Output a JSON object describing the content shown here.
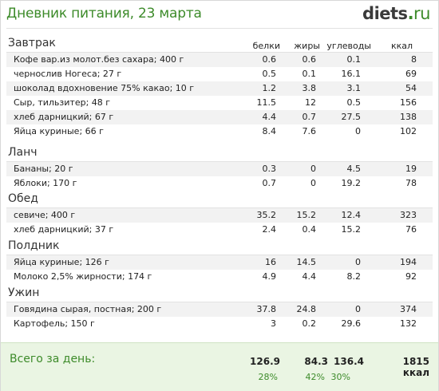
{
  "header": {
    "title": "Дневник питания, 23 марта",
    "logo_main": "diets",
    "logo_dot": ".",
    "logo_tld": "ru"
  },
  "columns": {
    "protein": "белки",
    "fat": "жиры",
    "carbs": "углеводы",
    "kcal": "ккал"
  },
  "meals": [
    {
      "title": "Завтрак",
      "items": [
        {
          "name": "Кофе вар.из молот.без сахара; 400 г",
          "p": "0.6",
          "f": "0.6",
          "c": "0.1",
          "k": "8"
        },
        {
          "name": "чернослив Ногеса; 27 г",
          "p": "0.5",
          "f": "0.1",
          "c": "16.1",
          "k": "69"
        },
        {
          "name": "шоколад вдохновение 75% какао; 10 г",
          "p": "1.2",
          "f": "3.8",
          "c": "3.1",
          "k": "54"
        },
        {
          "name": "Сыр, тильзитер; 48 г",
          "p": "11.5",
          "f": "12",
          "c": "0.5",
          "k": "156"
        },
        {
          "name": "хлеб дарницкий; 67 г",
          "p": "4.4",
          "f": "0.7",
          "c": "27.5",
          "k": "138"
        },
        {
          "name": "Яйца куриные; 66 г",
          "p": "8.4",
          "f": "7.6",
          "c": "0",
          "k": "102"
        }
      ]
    },
    {
      "title": "Ланч",
      "items": [
        {
          "name": "Бананы; 20 г",
          "p": "0.3",
          "f": "0",
          "c": "4.5",
          "k": "19"
        },
        {
          "name": "Яблоки; 170 г",
          "p": "0.7",
          "f": "0",
          "c": "19.2",
          "k": "78"
        }
      ]
    },
    {
      "title": "Обед",
      "items": [
        {
          "name": "севиче; 400 г",
          "p": "35.2",
          "f": "15.2",
          "c": "12.4",
          "k": "323"
        },
        {
          "name": "хлеб дарницкий; 37 г",
          "p": "2.4",
          "f": "0.4",
          "c": "15.2",
          "k": "76"
        }
      ]
    },
    {
      "title": "Полдник",
      "items": [
        {
          "name": "Яйца куриные; 126 г",
          "p": "16",
          "f": "14.5",
          "c": "0",
          "k": "194"
        },
        {
          "name": "Молоко 2,5% жирности; 174 г",
          "p": "4.9",
          "f": "4.4",
          "c": "8.2",
          "k": "92"
        }
      ]
    },
    {
      "title": "Ужин",
      "items": [
        {
          "name": "Говядина сырая, постная; 200 г",
          "p": "37.8",
          "f": "24.8",
          "c": "0",
          "k": "374"
        },
        {
          "name": "Картофель; 150 г",
          "p": "3",
          "f": "0.2",
          "c": "29.6",
          "k": "132"
        }
      ]
    }
  ],
  "total": {
    "label": "Всего за день:",
    "protein": "126.9",
    "fat": "84.3",
    "carbs": "136.4",
    "kcal": "1815 ккал",
    "protein_pct": "28%",
    "fat_pct": "42%",
    "carbs_pct": "30%"
  },
  "colors": {
    "accent": "#3d8b2a",
    "total_bg": "#eaf5e3",
    "row_alt": "#f2f2f2"
  }
}
